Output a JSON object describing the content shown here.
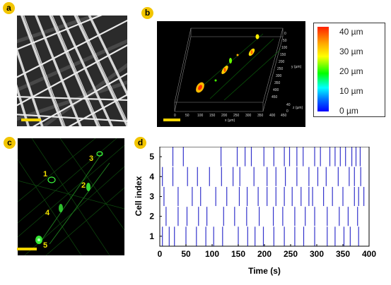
{
  "panels": {
    "a": {
      "badge": "a"
    },
    "b": {
      "badge": "b",
      "axis_ticks_x": [
        "0",
        "50",
        "100",
        "150",
        "200",
        "250",
        "300",
        "350",
        "400",
        "450"
      ],
      "axis_ticks_y": [
        "0",
        "50",
        "100",
        "150",
        "200",
        "250",
        "300",
        "350",
        "400",
        "450"
      ],
      "axis_ticks_z": [
        "40",
        "0"
      ],
      "x_unit": "x (µm)",
      "y_unit": "y (µm)",
      "z_unit": "z (µm)"
    },
    "colorbar": {
      "labels": [
        "40 µm",
        "30 µm",
        "20 µm",
        "10 µm",
        "0 µm"
      ],
      "colors": [
        "#ff2000",
        "#ffaa00",
        "#ffff00",
        "#00ff00",
        "#00ffff",
        "#0070ff",
        "#0000ff"
      ]
    },
    "c": {
      "badge": "c",
      "cell_labels": [
        "1",
        "2",
        "3",
        "4",
        "5"
      ]
    },
    "d": {
      "badge": "d"
    }
  },
  "chart_data": {
    "type": "scatter",
    "xlabel": "Time (s)",
    "ylabel": "Cell index",
    "xlim": [
      0,
      400
    ],
    "ylim": [
      0.5,
      5.5
    ],
    "xticks": [
      0,
      50,
      100,
      150,
      200,
      250,
      300,
      350,
      400
    ],
    "yticks": [
      1,
      2,
      3,
      4,
      5
    ],
    "marker": "vertical line",
    "color": "#3333cc",
    "series": [
      {
        "cell": 5,
        "spike_times": [
          25,
          45,
          117,
          148,
          163,
          175,
          199,
          218,
          238,
          248,
          262,
          274,
          296,
          307,
          325,
          335,
          345,
          355,
          367,
          375,
          383
        ]
      },
      {
        "cell": 4,
        "spike_times": [
          5,
          25,
          53,
          72,
          95,
          118,
          140,
          153,
          180,
          205,
          222,
          240,
          262,
          285,
          302,
          318,
          341,
          362,
          372,
          384
        ]
      },
      {
        "cell": 3,
        "spike_times": [
          8,
          35,
          62,
          78,
          107,
          128,
          152,
          167,
          188,
          205,
          222,
          238,
          253,
          270,
          285,
          292,
          313,
          330,
          350,
          372,
          380,
          390
        ]
      },
      {
        "cell": 2,
        "spike_times": [
          12,
          35,
          52,
          74,
          90,
          122,
          143,
          166,
          190,
          217,
          235,
          258,
          278,
          296,
          320,
          343,
          360,
          378
        ]
      },
      {
        "cell": 1,
        "spike_times": [
          5,
          18,
          28,
          50,
          70,
          88,
          103,
          120,
          150,
          168,
          182,
          198,
          218,
          238,
          258,
          275,
          296,
          320,
          335,
          352,
          364,
          380
        ]
      }
    ]
  }
}
